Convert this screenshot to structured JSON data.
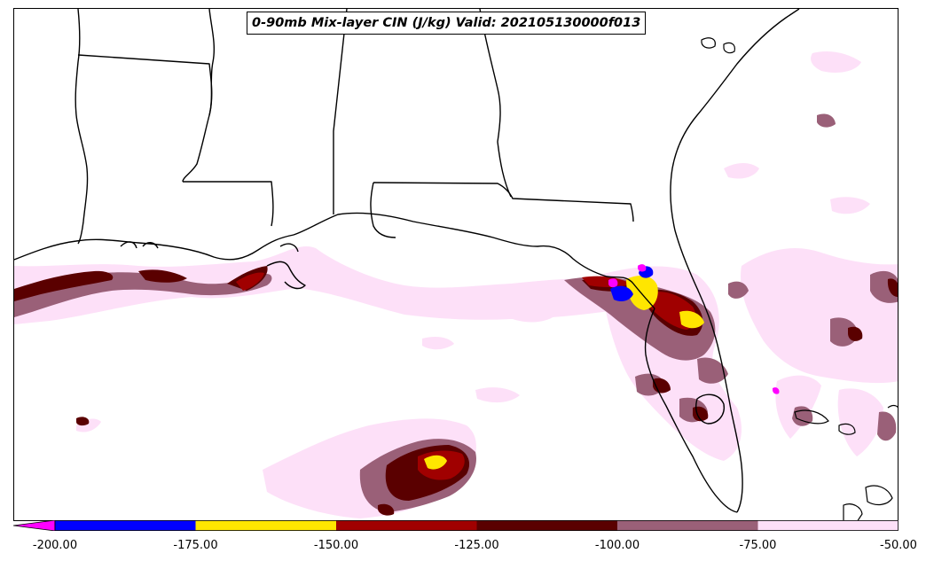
{
  "title": "0-90mb Mix-layer CIN (J/kg) Valid: 202105130000f013",
  "colorbar": {
    "ticks": [
      "-200.00",
      "-175.00",
      "-150.00",
      "-125.00",
      "-100.00",
      "-75.00",
      "-50.00"
    ],
    "bins": [
      {
        "from": -200,
        "to": -175,
        "color": "#0000ff"
      },
      {
        "from": -175,
        "to": -150,
        "color": "#ffe600"
      },
      {
        "from": -150,
        "to": -125,
        "color": "#a00000"
      },
      {
        "from": -125,
        "to": -100,
        "color": "#5a0000"
      },
      {
        "from": -100,
        "to": -75,
        "color": "#9a6078"
      },
      {
        "from": -75,
        "to": -50,
        "color": "#fde0f8"
      }
    ],
    "extend_color": "#ff00ff"
  },
  "map": {
    "region": "Gulf of Mexico / Southeastern United States",
    "field": "0-90mb Mix-layer CIN"
  }
}
